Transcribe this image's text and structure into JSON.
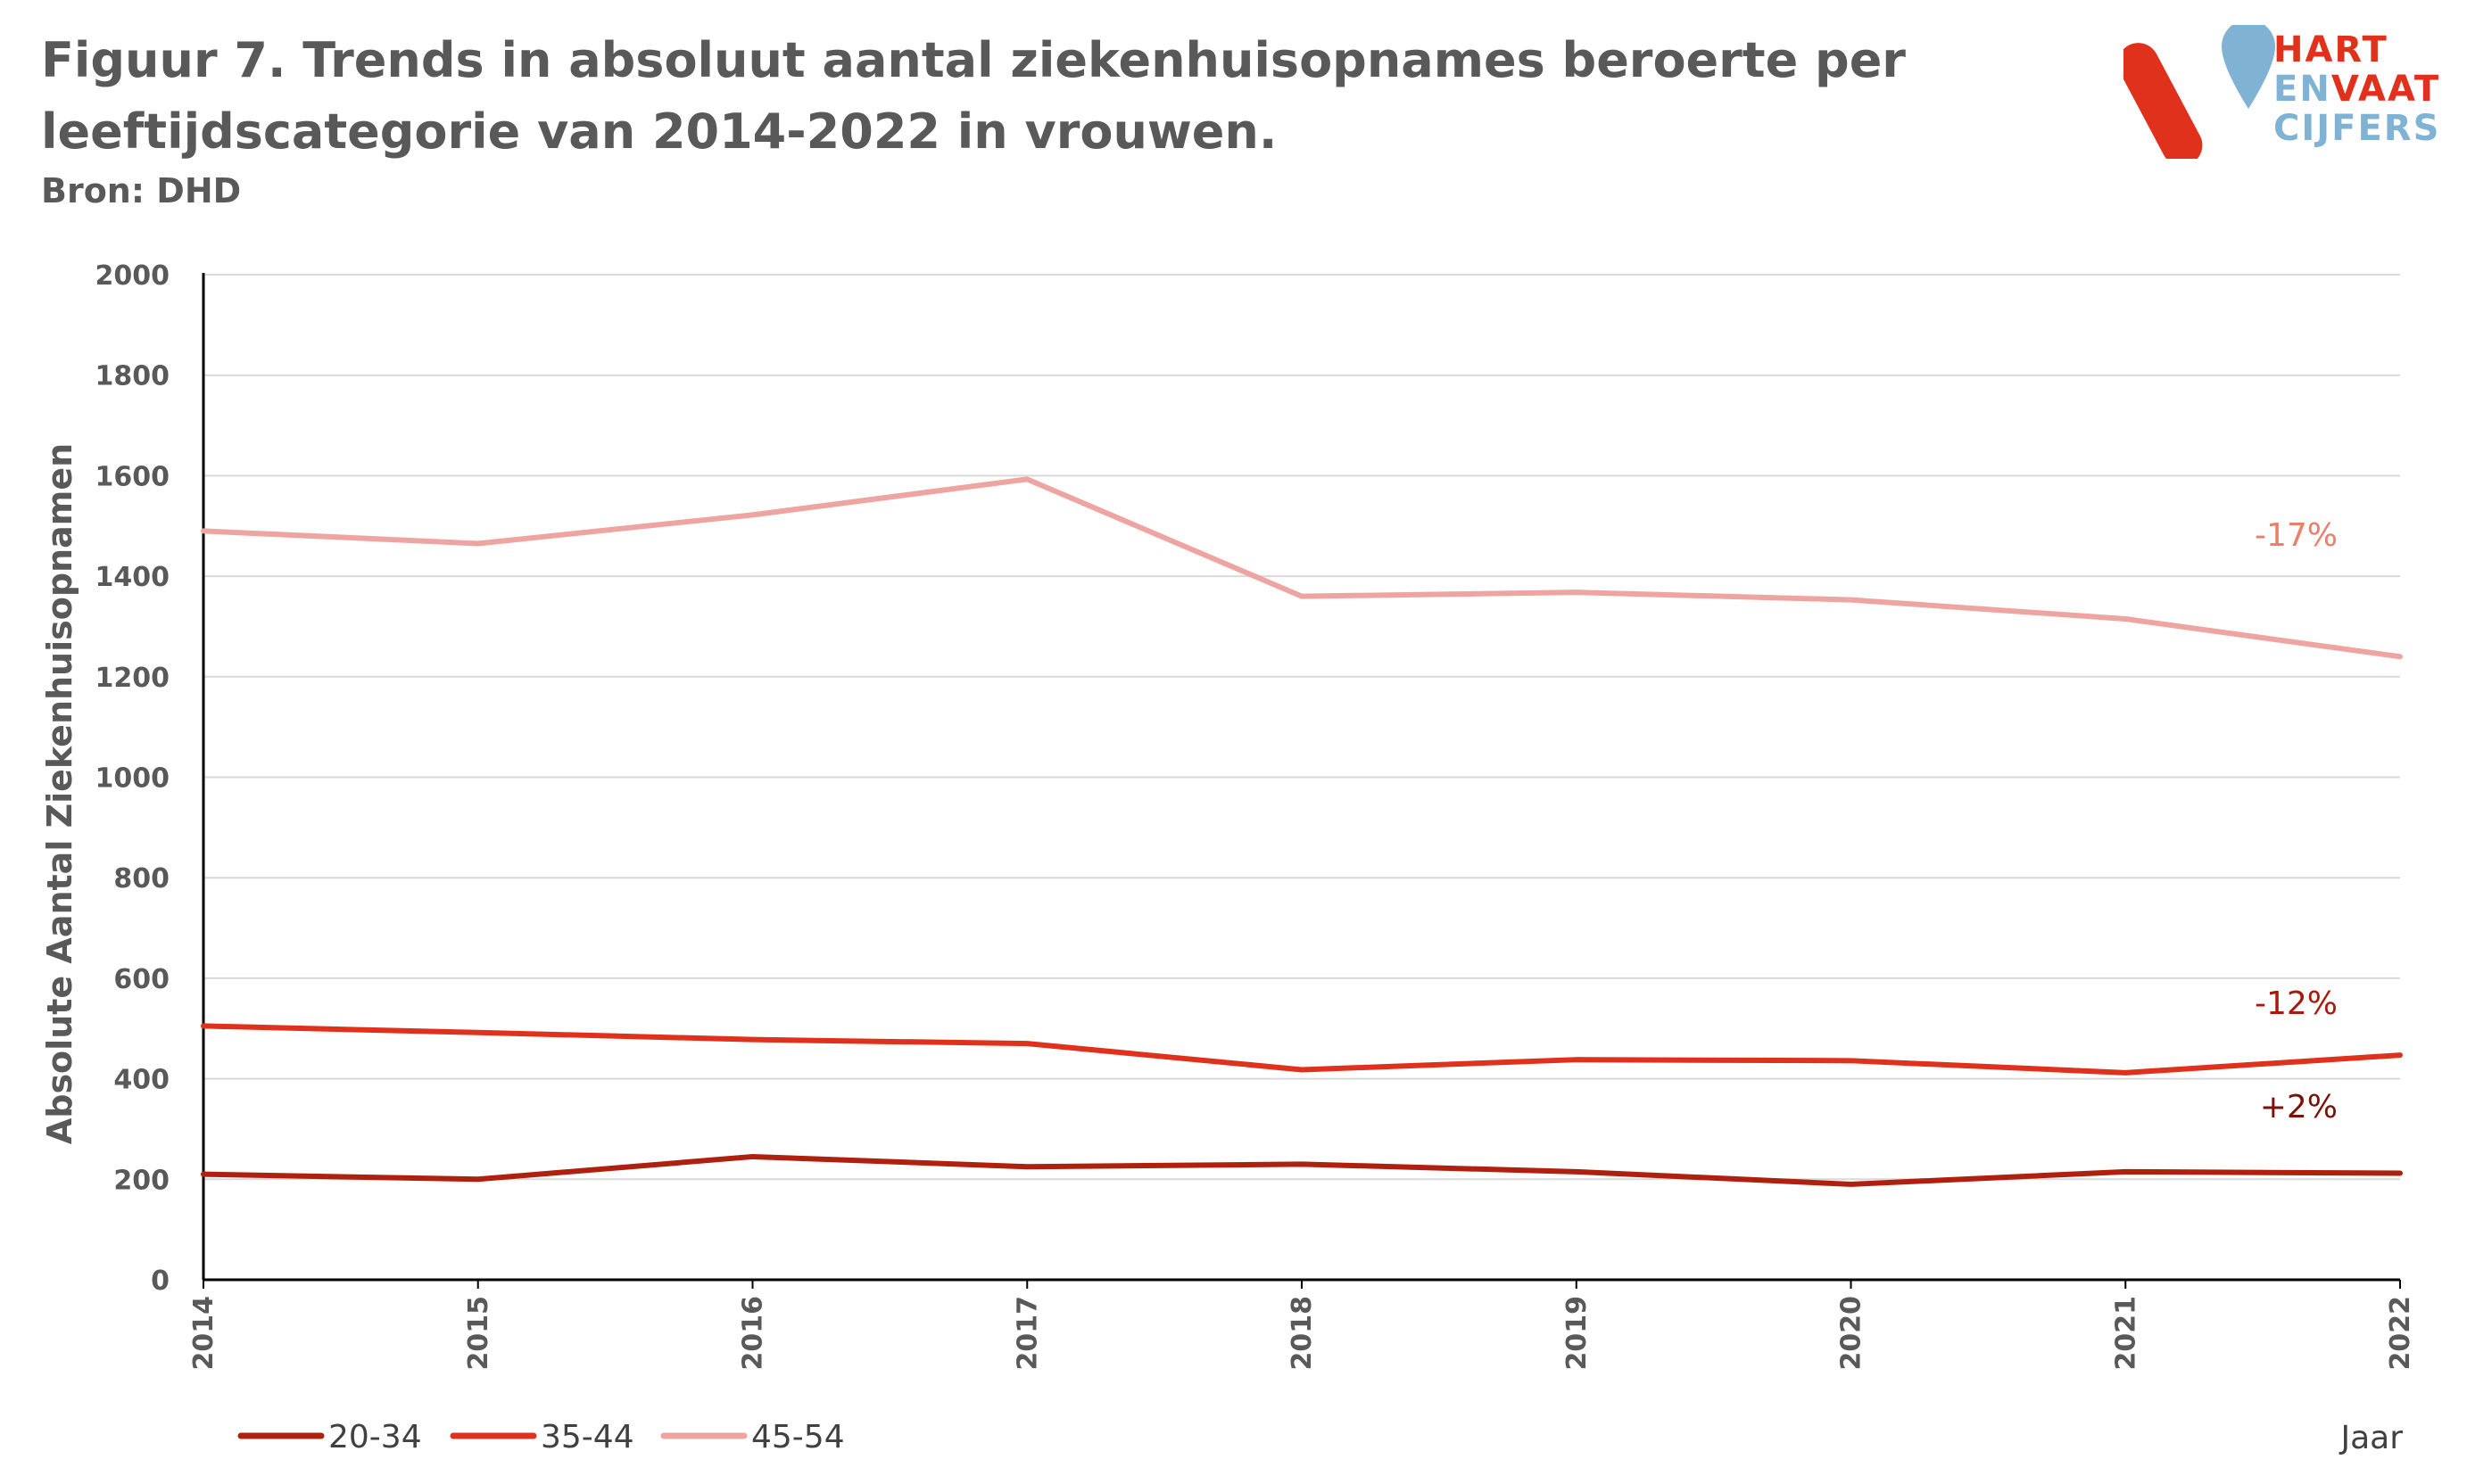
{
  "title_line1": "Figuur 7. Trends in absoluut aantal ziekenhuisopnames beroerte per",
  "title_line2": "leeftijdscategorie van 2014-2022 in vrouwen.",
  "source": "Bron: DHD",
  "logo": {
    "line1": "HART",
    "line2a": "EN",
    "line2b": "VAAT",
    "line3": "CIJFERS",
    "red": "#e0311c",
    "blue": "#7fb2d3"
  },
  "chart_data": {
    "type": "line",
    "ylabel": "Absolute Aantal Ziekenhuisopnamen",
    "xlabel": "Jaar",
    "x": [
      "2014",
      "2015",
      "2016",
      "2017",
      "2018",
      "2019",
      "2020",
      "2021",
      "2022"
    ],
    "ylim": [
      0,
      2000
    ],
    "yticks": [
      0,
      200,
      400,
      600,
      800,
      1000,
      1200,
      1400,
      1600,
      1800,
      2000
    ],
    "grid": true,
    "legend_position": "bottom-left",
    "series": [
      {
        "name": "20-34",
        "color": "#b0200f",
        "values": [
          210,
          200,
          245,
          225,
          230,
          215,
          190,
          215,
          212
        ],
        "annotation": "+2%"
      },
      {
        "name": "35-44",
        "color": "#e0311c",
        "values": [
          505,
          492,
          478,
          470,
          418,
          438,
          436,
          412,
          447
        ],
        "annotation": "-12%"
      },
      {
        "name": "45-54",
        "color": "#eea4a0",
        "values": [
          1490,
          1465,
          1522,
          1593,
          1360,
          1368,
          1353,
          1315,
          1240
        ],
        "annotation": "-17%"
      }
    ],
    "annotation_colors": [
      "#7a1208",
      "#a81a0e",
      "#e8806a"
    ]
  }
}
